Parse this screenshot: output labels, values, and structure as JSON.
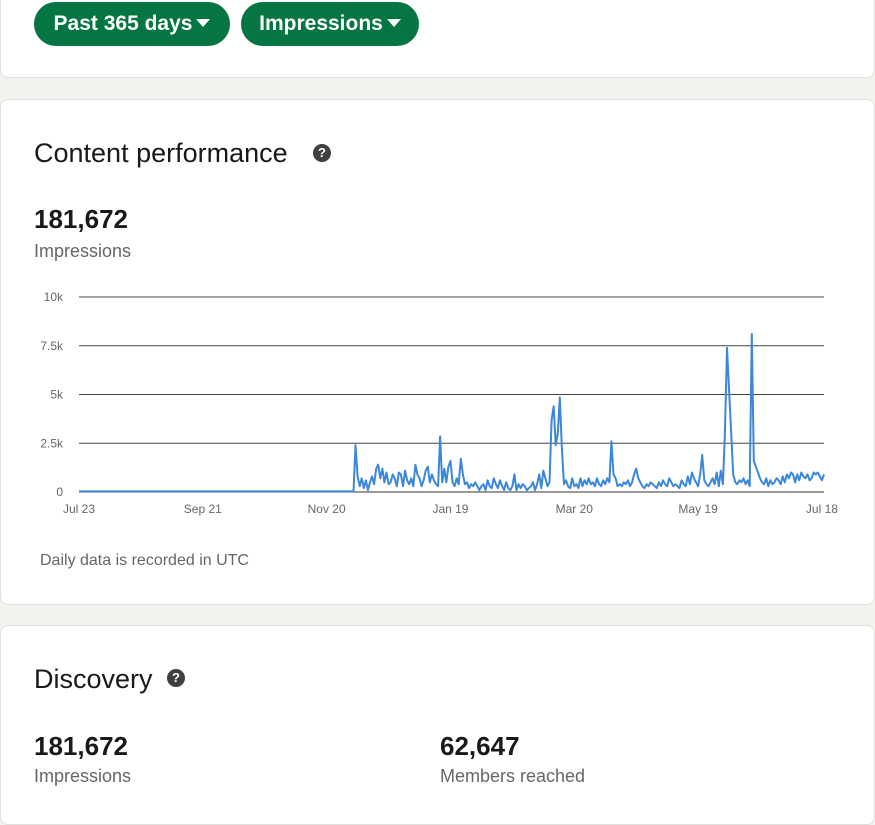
{
  "filters": {
    "date_range": "Past 365 days",
    "metric": "Impressions"
  },
  "content_performance": {
    "title": "Content performance",
    "total": "181,672",
    "total_label": "Impressions",
    "note": "Daily data is recorded in UTC"
  },
  "discovery": {
    "title": "Discovery",
    "impressions_value": "181,672",
    "impressions_label": "Impressions",
    "members_value": "62,647",
    "members_label": "Members reached"
  },
  "icons": {
    "help": "question-circle-icon",
    "dropdown": "caret-down-icon"
  },
  "colors": {
    "accent": "#057642",
    "line": "#3b87d9"
  },
  "chart_data": {
    "type": "line",
    "title": "",
    "xlabel": "",
    "ylabel": "",
    "ylim": [
      0,
      10000
    ],
    "yticks": [
      0,
      2500,
      5000,
      7500,
      10000
    ],
    "ytick_labels": [
      "0",
      "2.5k",
      "5k",
      "7.5k",
      "10k"
    ],
    "x_range_days": [
      0,
      361
    ],
    "xtick_days": [
      0,
      60,
      120,
      180,
      240,
      300,
      360
    ],
    "xtick_labels": [
      "Jul 23",
      "Sep 21",
      "Nov 20",
      "Jan 19",
      "Mar 20",
      "May 19",
      "Jul 18"
    ],
    "grid": true,
    "series": [
      {
        "points": [
          [
            0,
            30
          ],
          [
            60,
            30
          ],
          [
            130,
            30
          ],
          [
            133,
            30
          ],
          [
            134,
            2400
          ],
          [
            135,
            800
          ],
          [
            136,
            300
          ],
          [
            137,
            700
          ],
          [
            138,
            200
          ],
          [
            139,
            600
          ],
          [
            140,
            100
          ],
          [
            141,
            500
          ],
          [
            142,
            800
          ],
          [
            143,
            400
          ],
          [
            144,
            1200
          ],
          [
            145,
            1400
          ],
          [
            146,
            700
          ],
          [
            147,
            1200
          ],
          [
            148,
            500
          ],
          [
            149,
            1000
          ],
          [
            150,
            400
          ],
          [
            151,
            500
          ],
          [
            152,
            900
          ],
          [
            153,
            700
          ],
          [
            154,
            300
          ],
          [
            155,
            1000
          ],
          [
            156,
            900
          ],
          [
            157,
            300
          ],
          [
            158,
            1100
          ],
          [
            159,
            600
          ],
          [
            160,
            400
          ],
          [
            161,
            700
          ],
          [
            162,
            300
          ],
          [
            163,
            1400
          ],
          [
            164,
            900
          ],
          [
            165,
            700
          ],
          [
            166,
            300
          ],
          [
            167,
            600
          ],
          [
            168,
            1100
          ],
          [
            169,
            1300
          ],
          [
            170,
            500
          ],
          [
            171,
            900
          ],
          [
            172,
            600
          ],
          [
            173,
            400
          ],
          [
            174,
            300
          ],
          [
            175,
            2850
          ],
          [
            176,
            500
          ],
          [
            177,
            1200
          ],
          [
            178,
            500
          ],
          [
            179,
            1300
          ],
          [
            180,
            1600
          ],
          [
            181,
            500
          ],
          [
            182,
            300
          ],
          [
            183,
            700
          ],
          [
            184,
            400
          ],
          [
            185,
            1700
          ],
          [
            186,
            900
          ],
          [
            187,
            400
          ],
          [
            188,
            500
          ],
          [
            189,
            200
          ],
          [
            190,
            400
          ],
          [
            191,
            300
          ],
          [
            192,
            500
          ],
          [
            193,
            300
          ],
          [
            194,
            100
          ],
          [
            195,
            300
          ],
          [
            196,
            400
          ],
          [
            197,
            100
          ],
          [
            198,
            600
          ],
          [
            199,
            300
          ],
          [
            200,
            200
          ],
          [
            201,
            700
          ],
          [
            202,
            400
          ],
          [
            203,
            200
          ],
          [
            204,
            600
          ],
          [
            205,
            300
          ],
          [
            206,
            100
          ],
          [
            207,
            500
          ],
          [
            208,
            200
          ],
          [
            209,
            100
          ],
          [
            210,
            300
          ],
          [
            211,
            900
          ],
          [
            212,
            100
          ],
          [
            213,
            400
          ],
          [
            214,
            200
          ],
          [
            215,
            400
          ],
          [
            216,
            300
          ],
          [
            217,
            100
          ],
          [
            218,
            200
          ],
          [
            219,
            300
          ],
          [
            220,
            500
          ],
          [
            221,
            100
          ],
          [
            222,
            400
          ],
          [
            223,
            900
          ],
          [
            224,
            200
          ],
          [
            225,
            1100
          ],
          [
            226,
            700
          ],
          [
            227,
            300
          ],
          [
            228,
            500
          ],
          [
            229,
            3700
          ],
          [
            230,
            4400
          ],
          [
            231,
            2400
          ],
          [
            232,
            3000
          ],
          [
            233,
            4850
          ],
          [
            234,
            2200
          ],
          [
            235,
            400
          ],
          [
            236,
            600
          ],
          [
            237,
            300
          ],
          [
            238,
            200
          ],
          [
            239,
            700
          ],
          [
            240,
            300
          ],
          [
            241,
            400
          ],
          [
            242,
            200
          ],
          [
            243,
            700
          ],
          [
            244,
            300
          ],
          [
            245,
            600
          ],
          [
            246,
            400
          ],
          [
            247,
            700
          ],
          [
            248,
            400
          ],
          [
            249,
            500
          ],
          [
            250,
            300
          ],
          [
            251,
            700
          ],
          [
            252,
            400
          ],
          [
            253,
            300
          ],
          [
            254,
            600
          ],
          [
            255,
            400
          ],
          [
            256,
            700
          ],
          [
            257,
            500
          ],
          [
            258,
            2600
          ],
          [
            259,
            900
          ],
          [
            260,
            700
          ],
          [
            261,
            300
          ],
          [
            262,
            400
          ],
          [
            263,
            300
          ],
          [
            264,
            500
          ],
          [
            265,
            400
          ],
          [
            266,
            600
          ],
          [
            267,
            300
          ],
          [
            268,
            500
          ],
          [
            269,
            900
          ],
          [
            270,
            1200
          ],
          [
            271,
            700
          ],
          [
            272,
            500
          ],
          [
            273,
            300
          ],
          [
            274,
            200
          ],
          [
            275,
            400
          ],
          [
            276,
            300
          ],
          [
            277,
            500
          ],
          [
            278,
            400
          ],
          [
            279,
            300
          ],
          [
            280,
            200
          ],
          [
            281,
            500
          ],
          [
            282,
            300
          ],
          [
            283,
            600
          ],
          [
            284,
            400
          ],
          [
            285,
            300
          ],
          [
            286,
            700
          ],
          [
            287,
            500
          ],
          [
            288,
            300
          ],
          [
            289,
            400
          ],
          [
            290,
            300
          ],
          [
            291,
            200
          ],
          [
            292,
            600
          ],
          [
            293,
            400
          ],
          [
            294,
            300
          ],
          [
            295,
            800
          ],
          [
            296,
            400
          ],
          [
            297,
            1000
          ],
          [
            298,
            700
          ],
          [
            299,
            500
          ],
          [
            300,
            300
          ],
          [
            301,
            900
          ],
          [
            302,
            1900
          ],
          [
            303,
            600
          ],
          [
            304,
            400
          ],
          [
            305,
            300
          ],
          [
            306,
            500
          ],
          [
            307,
            700
          ],
          [
            308,
            400
          ],
          [
            309,
            1000
          ],
          [
            310,
            300
          ],
          [
            311,
            1100
          ],
          [
            312,
            400
          ],
          [
            313,
            3000
          ],
          [
            314,
            7400
          ],
          [
            315,
            5200
          ],
          [
            316,
            3100
          ],
          [
            317,
            900
          ],
          [
            318,
            500
          ],
          [
            319,
            400
          ],
          [
            320,
            600
          ],
          [
            321,
            500
          ],
          [
            322,
            700
          ],
          [
            323,
            400
          ],
          [
            324,
            600
          ],
          [
            325,
            300
          ],
          [
            326,
            8100
          ],
          [
            327,
            1600
          ],
          [
            328,
            1300
          ],
          [
            329,
            1000
          ],
          [
            330,
            700
          ],
          [
            331,
            500
          ],
          [
            332,
            400
          ],
          [
            333,
            700
          ],
          [
            334,
            300
          ],
          [
            335,
            600
          ],
          [
            336,
            400
          ],
          [
            337,
            500
          ],
          [
            338,
            700
          ],
          [
            339,
            600
          ],
          [
            340,
            400
          ],
          [
            341,
            800
          ],
          [
            342,
            500
          ],
          [
            343,
            900
          ],
          [
            344,
            700
          ],
          [
            345,
            1000
          ],
          [
            346,
            900
          ],
          [
            347,
            500
          ],
          [
            348,
            900
          ],
          [
            349,
            600
          ],
          [
            350,
            1000
          ],
          [
            351,
            800
          ],
          [
            352,
            700
          ],
          [
            353,
            900
          ],
          [
            354,
            600
          ],
          [
            355,
            700
          ],
          [
            356,
            1000
          ],
          [
            357,
            900
          ],
          [
            358,
            1000
          ],
          [
            359,
            800
          ],
          [
            360,
            600
          ],
          [
            361,
            900
          ]
        ]
      }
    ]
  }
}
